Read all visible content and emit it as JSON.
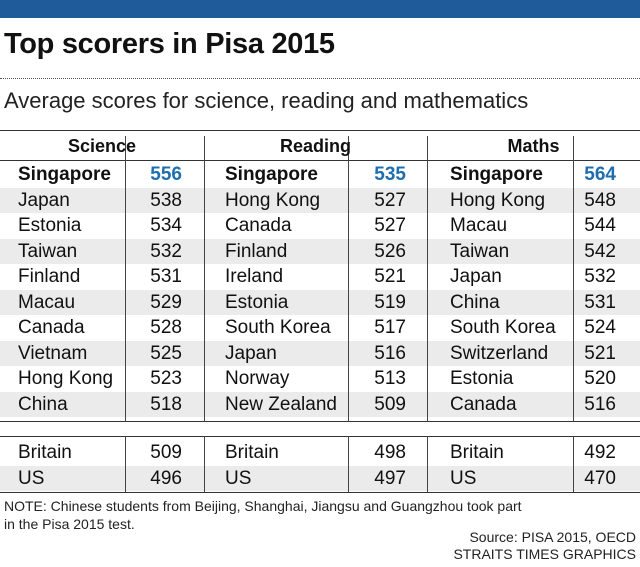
{
  "title": "Top scorers in Pisa 2015",
  "subtitle": "Average scores for science, reading and mathematics",
  "colors": {
    "topbar": "#1f5a9a",
    "highlight": "#1f6fae",
    "stripe": "#ebebeb"
  },
  "chart_data": {
    "type": "table",
    "title": "Top scorers in Pisa 2015",
    "subtitle": "Average scores for science, reading and mathematics",
    "columns": [
      {
        "subject": "Science",
        "rows": [
          {
            "country": "Singapore",
            "score": 556
          },
          {
            "country": "Japan",
            "score": 538
          },
          {
            "country": "Estonia",
            "score": 534
          },
          {
            "country": "Taiwan",
            "score": 532
          },
          {
            "country": "Finland",
            "score": 531
          },
          {
            "country": "Macau",
            "score": 529
          },
          {
            "country": "Canada",
            "score": 528
          },
          {
            "country": "Vietnam",
            "score": 525
          },
          {
            "country": "Hong Kong",
            "score": 523
          },
          {
            "country": "China",
            "score": 518
          }
        ],
        "extra": [
          {
            "country": "Britain",
            "score": 509
          },
          {
            "country": "US",
            "score": 496
          }
        ]
      },
      {
        "subject": "Reading",
        "rows": [
          {
            "country": "Singapore",
            "score": 535
          },
          {
            "country": "Hong Kong",
            "score": 527
          },
          {
            "country": "Canada",
            "score": 527
          },
          {
            "country": "Finland",
            "score": 526
          },
          {
            "country": "Ireland",
            "score": 521
          },
          {
            "country": "Estonia",
            "score": 519
          },
          {
            "country": "South Korea",
            "score": 517
          },
          {
            "country": "Japan",
            "score": 516
          },
          {
            "country": "Norway",
            "score": 513
          },
          {
            "country": "New Zealand",
            "score": 509
          }
        ],
        "extra": [
          {
            "country": "Britain",
            "score": 498
          },
          {
            "country": "US",
            "score": 497
          }
        ]
      },
      {
        "subject": "Maths",
        "rows": [
          {
            "country": "Singapore",
            "score": 564
          },
          {
            "country": "Hong Kong",
            "score": 548
          },
          {
            "country": "Macau",
            "score": 544
          },
          {
            "country": "Taiwan",
            "score": 542
          },
          {
            "country": "Japan",
            "score": 532
          },
          {
            "country": "China",
            "score": 531
          },
          {
            "country": "South Korea",
            "score": 524
          },
          {
            "country": "Switzerland",
            "score": 521
          },
          {
            "country": "Estonia",
            "score": 520
          },
          {
            "country": "Canada",
            "score": 516
          }
        ],
        "extra": [
          {
            "country": "Britain",
            "score": 492
          },
          {
            "country": "US",
            "score": 470
          }
        ]
      }
    ]
  },
  "note": "NOTE: Chinese students from Beijing, Shanghai, Jiangsu and Guangzhou took part in the Pisa 2015 test.",
  "source": "Source: PISA 2015, OECD",
  "credit": "STRAITS TIMES GRAPHICS"
}
